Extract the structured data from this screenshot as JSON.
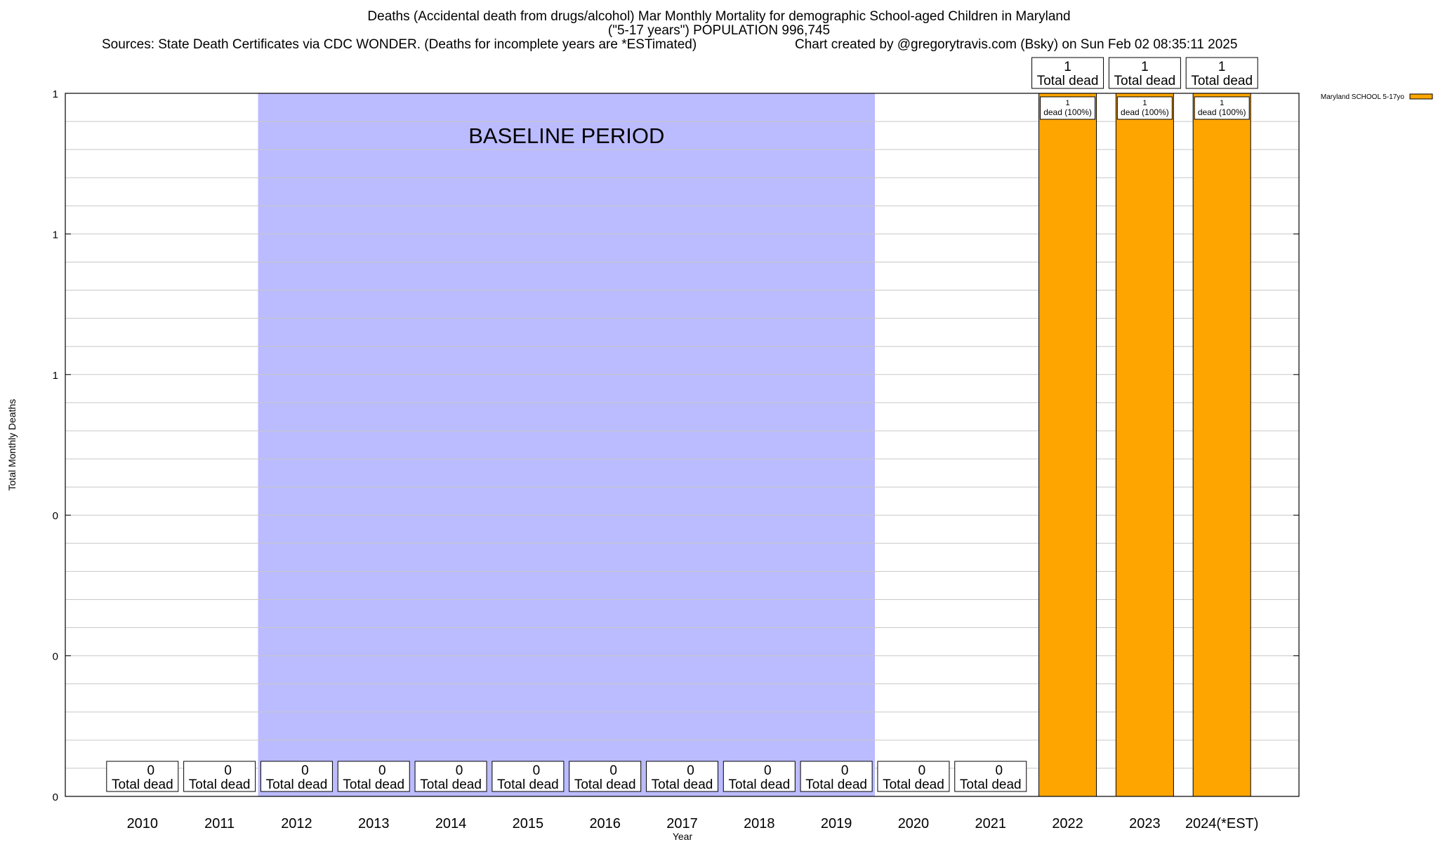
{
  "header": {
    "title_line1": "Deaths (Accidental death from drugs/alcohol) Mar Monthly Mortality for demographic School-aged Children in Maryland",
    "title_line2": "(\"5-17 years\") POPULATION 996,745",
    "sources": "Sources: State Death Certificates via CDC WONDER. (Deaths for incomplete years are *ESTimated)",
    "credit": "Chart created by @gregorytravis.com (Bsky) on Sun Feb 02 08:35:11 2025"
  },
  "chart_data": {
    "type": "bar",
    "categories": [
      "2010",
      "2011",
      "2012",
      "2013",
      "2014",
      "2015",
      "2016",
      "2017",
      "2018",
      "2019",
      "2020",
      "2021",
      "2022",
      "2023",
      "2024(*EST)"
    ],
    "series": [
      {
        "name": "Maryland SCHOOL 5-17yo",
        "values": [
          0,
          0,
          0,
          0,
          0,
          0,
          0,
          0,
          0,
          0,
          0,
          0,
          1,
          1,
          1
        ],
        "color": "#ffa500"
      }
    ],
    "total_labels": [
      "0",
      "0",
      "0",
      "0",
      "0",
      "0",
      "0",
      "0",
      "0",
      "0",
      "0",
      "0",
      "1",
      "1",
      "1"
    ],
    "total_suffix": "Total dead",
    "segment_labels": [
      "",
      "",
      "",
      "",
      "",
      "",
      "",
      "",
      "",
      "",
      "",
      "",
      "1\ndead (100%)",
      "1\ndead (100%)",
      "1\ndead (100%)"
    ],
    "xlabel": "Year",
    "ylabel": "Total Monthly Deaths",
    "ylim": [
      0,
      1
    ],
    "ytick_labels": [
      "0",
      "0",
      "0",
      "1",
      "1",
      "1"
    ],
    "grid": true,
    "legend_position": "top-right",
    "baseline": {
      "label": "BASELINE PERIOD",
      "from": "2012",
      "to": "2019",
      "color": "#bbbbff"
    },
    "bar_edge_color": "#000000"
  }
}
